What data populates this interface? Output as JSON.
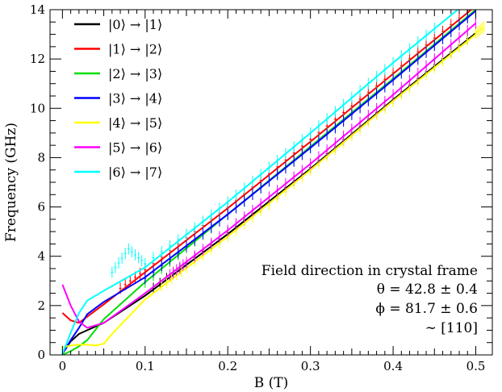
{
  "chart_data": {
    "type": "line",
    "title": "",
    "xlabel": "B (T)",
    "ylabel": "Frequency (GHz)",
    "xlim": [
      -0.015,
      0.52
    ],
    "ylim": [
      0,
      14
    ],
    "x_ticks": [
      {
        "value": 0,
        "label": "0"
      },
      {
        "value": 0.1,
        "label": "0.1"
      },
      {
        "value": 0.2,
        "label": "0.2"
      },
      {
        "value": 0.3,
        "label": "0.3"
      },
      {
        "value": 0.4,
        "label": "0.4"
      },
      {
        "value": 0.5,
        "label": "0.5"
      }
    ],
    "y_ticks": [
      {
        "value": 0,
        "label": "0"
      },
      {
        "value": 2,
        "label": "2"
      },
      {
        "value": 4,
        "label": "4"
      },
      {
        "value": 6,
        "label": "6"
      },
      {
        "value": 8,
        "label": "8"
      },
      {
        "value": 10,
        "label": "10"
      },
      {
        "value": 12,
        "label": "12"
      },
      {
        "value": 14,
        "label": "14"
      }
    ],
    "grid": false,
    "legend_position": "top-left",
    "series": [
      {
        "name": "|0⟩ → |1⟩",
        "color": "#000000",
        "x": [
          0,
          0.01,
          0.02,
          0.03,
          0.05,
          0.1,
          0.2,
          0.3,
          0.4,
          0.5
        ],
        "y": [
          0.05,
          0.55,
          0.85,
          1.0,
          1.3,
          2.4,
          4.9,
          7.55,
          10.35,
          13.05
        ],
        "points_x": [
          0.11,
          0.15,
          0.2,
          0.25,
          0.3,
          0.35,
          0.4,
          0.45,
          0.5
        ],
        "points_y": [
          2.7,
          3.7,
          4.95,
          6.25,
          7.6,
          9.0,
          10.4,
          11.75,
          13.1
        ]
      },
      {
        "name": "|1⟩ → |2⟩",
        "color": "#ff0000",
        "x": [
          0,
          0.01,
          0.02,
          0.03,
          0.05,
          0.1,
          0.2,
          0.3,
          0.4,
          0.5
        ],
        "y": [
          1.7,
          1.4,
          1.3,
          1.55,
          2.05,
          3.35,
          5.95,
          8.65,
          11.4,
          14.15
        ],
        "points_x": [
          0.07,
          0.1,
          0.15,
          0.2,
          0.25,
          0.3,
          0.35,
          0.4,
          0.45,
          0.5
        ],
        "points_y": [
          2.7,
          3.45,
          4.75,
          6.0,
          7.35,
          8.75,
          10.1,
          11.45,
          12.85,
          14.2
        ]
      },
      {
        "name": "|2⟩ → |3⟩",
        "color": "#00dd00",
        "x": [
          0,
          0.01,
          0.02,
          0.03,
          0.05,
          0.1,
          0.2,
          0.3,
          0.4,
          0.5
        ],
        "y": [
          0,
          0.15,
          0.35,
          0.6,
          1.45,
          2.95,
          5.7,
          8.45,
          11.2,
          14.0
        ],
        "points_x": [
          0.1,
          0.15,
          0.2,
          0.25,
          0.3,
          0.35,
          0.4,
          0.45,
          0.5
        ],
        "points_y": [
          2.95,
          4.35,
          5.7,
          7.05,
          8.45,
          9.8,
          11.2,
          12.6,
          14.0
        ]
      },
      {
        "name": "|3⟩ → |4⟩",
        "color": "#0000ff",
        "x": [
          0,
          0.01,
          0.02,
          0.03,
          0.05,
          0.1,
          0.2,
          0.3,
          0.4,
          0.5
        ],
        "y": [
          0.05,
          0.6,
          1.1,
          1.65,
          2.15,
          3.15,
          5.7,
          8.4,
          11.15,
          13.95
        ],
        "points_x": [
          0.1,
          0.15,
          0.2,
          0.25,
          0.3,
          0.35,
          0.4,
          0.45,
          0.5
        ],
        "points_y": [
          3.1,
          4.4,
          5.7,
          7.05,
          8.4,
          9.75,
          11.15,
          12.55,
          13.95
        ]
      },
      {
        "name": "|4⟩ → |5⟩",
        "color": "#ffff00",
        "x": [
          0,
          0.01,
          0.02,
          0.03,
          0.04,
          0.05,
          0.06,
          0.1,
          0.2,
          0.3,
          0.4,
          0.5
        ],
        "y": [
          0.3,
          0.38,
          0.42,
          0.42,
          0.38,
          0.45,
          0.85,
          2.25,
          4.8,
          7.5,
          10.3,
          13.0
        ],
        "points_x": [
          0.12,
          0.15,
          0.2,
          0.25,
          0.3,
          0.35,
          0.4,
          0.45,
          0.5,
          0.51
        ],
        "points_y": [
          2.8,
          3.55,
          4.8,
          6.1,
          7.5,
          8.9,
          10.3,
          11.65,
          13.05,
          13.3
        ]
      },
      {
        "name": "|5⟩ → |6⟩",
        "color": "#ff00ff",
        "x": [
          0,
          0.01,
          0.02,
          0.03,
          0.05,
          0.1,
          0.2,
          0.3,
          0.4,
          0.5
        ],
        "y": [
          2.85,
          2.0,
          1.35,
          1.1,
          1.3,
          2.5,
          5.05,
          7.75,
          10.55,
          13.45
        ],
        "points_x": [
          0.13,
          0.15,
          0.2,
          0.25,
          0.3,
          0.35,
          0.4,
          0.45,
          0.5
        ],
        "points_y": [
          3.25,
          3.75,
          5.05,
          6.4,
          7.75,
          9.15,
          10.55,
          12.0,
          13.45
        ]
      },
      {
        "name": "|6⟩ → |7⟩",
        "color": "#00ffff",
        "x": [
          0,
          0.01,
          0.02,
          0.03,
          0.05,
          0.1,
          0.2,
          0.3,
          0.4,
          0.5
        ],
        "y": [
          0.05,
          0.9,
          1.7,
          2.2,
          2.6,
          3.55,
          6.2,
          9.0,
          11.85,
          14.6
        ],
        "points_x": [
          0.06,
          0.08,
          0.1,
          0.15,
          0.2,
          0.25,
          0.3,
          0.35,
          0.4,
          0.45
        ],
        "points_y": [
          3.35,
          4.3,
          3.7,
          4.9,
          6.2,
          7.6,
          9.0,
          10.45,
          11.85,
          13.25
        ]
      }
    ],
    "annotations": [
      "Field direction in crystal frame",
      "θ = 42.8 ± 0.4",
      "ϕ = 81.7 ± 0.6",
      "∼ [110]"
    ]
  }
}
